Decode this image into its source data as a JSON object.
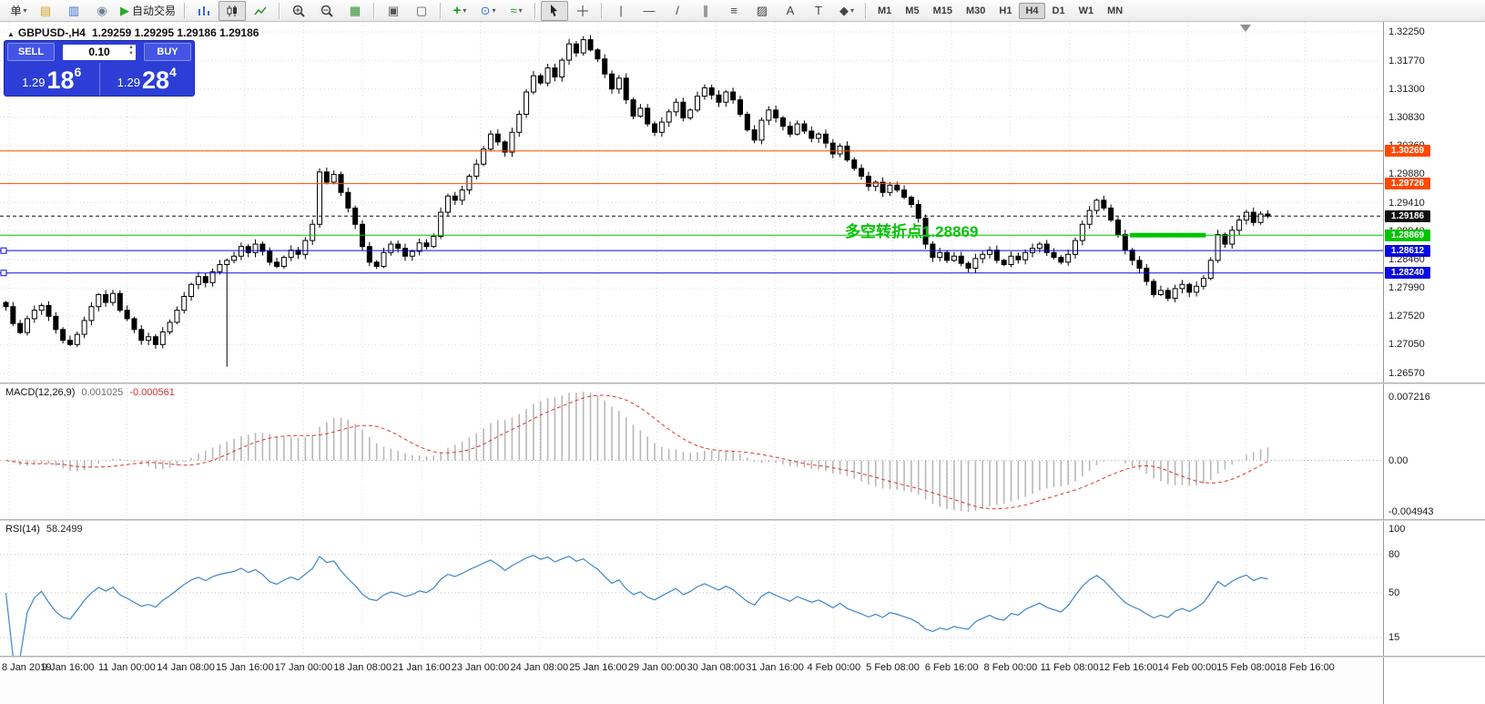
{
  "glyphs": {
    "caret": "▾",
    "spin_up": "▲",
    "spin_down": "▼",
    "panel_toggle": "▲"
  },
  "toolbar": {
    "timeframes": [
      "M1",
      "M5",
      "M15",
      "M30",
      "H1",
      "H4",
      "D1",
      "W1",
      "MN"
    ],
    "active_timeframe": "H4",
    "items": [
      {
        "kind": "label",
        "name": "order-menu",
        "label": "单",
        "caret": true
      },
      {
        "kind": "glyph",
        "name": "new-order-icon",
        "glyph": "▤",
        "color": "#d79f1e"
      },
      {
        "kind": "glyph",
        "name": "market-watch-icon",
        "glyph": "▥",
        "color": "#3a6fd8"
      },
      {
        "kind": "glyph",
        "name": "navigator-icon",
        "glyph": "◉",
        "color": "#6d7f94"
      },
      {
        "kind": "label",
        "name": "autotrading-button",
        "glyph": "▶",
        "glyph_color": "#27aa27",
        "label": "自动交易"
      },
      {
        "kind": "sep"
      },
      {
        "kind": "svg",
        "name": "bar-chart-button",
        "icon": "bars"
      },
      {
        "kind": "svg",
        "name": "candlestick-chart-button",
        "icon": "candles",
        "pressed": true
      },
      {
        "kind": "svg",
        "name": "line-chart-button",
        "icon": "linechart"
      },
      {
        "kind": "sep"
      },
      {
        "kind": "svg",
        "name": "zoom-in-button",
        "icon": "zoomin"
      },
      {
        "kind": "svg",
        "name": "zoom-out-button",
        "icon": "zoomout"
      },
      {
        "kind": "glyph",
        "name": "tile-windows-icon",
        "glyph": "▦",
        "color": "#2f8f2f"
      },
      {
        "kind": "sep"
      },
      {
        "kind": "glyph",
        "name": "arrange-horizontal-icon",
        "glyph": "▣",
        "color": "#555555"
      },
      {
        "kind": "glyph",
        "name": "arrange-vertical-icon",
        "glyph": "▢",
        "color": "#555555"
      },
      {
        "kind": "sep"
      },
      {
        "kind": "glyph",
        "name": "new-order-button",
        "glyph": "+",
        "color": "#1d9f1d",
        "bold": true,
        "caret": true
      },
      {
        "kind": "glyph",
        "name": "chart-period-button",
        "glyph": "⊙",
        "color": "#2f6fd0",
        "caret": true
      },
      {
        "kind": "glyph",
        "name": "indicators-button",
        "glyph": "≈",
        "color": "#1d9f1d",
        "caret": true
      },
      {
        "kind": "sep"
      },
      {
        "kind": "svg",
        "name": "cursor-tool-button",
        "icon": "cursor",
        "pressed": true
      },
      {
        "kind": "svg",
        "name": "crosshair-tool-button",
        "icon": "crosshair"
      },
      {
        "kind": "sep"
      },
      {
        "kind": "glyph",
        "name": "vertical-line-tool",
        "glyph": "|",
        "color": "#444444"
      },
      {
        "kind": "glyph",
        "name": "horizontal-line-tool",
        "glyph": "—",
        "color": "#444444"
      },
      {
        "kind": "glyph",
        "name": "trendline-tool",
        "glyph": "/",
        "color": "#444444"
      },
      {
        "kind": "glyph",
        "name": "channel-tool",
        "glyph": "∥",
        "color": "#444444"
      },
      {
        "kind": "glyph",
        "name": "fibonacci-tool",
        "glyph": "≡",
        "color": "#444444"
      },
      {
        "kind": "glyph",
        "name": "shapes-grid-tool",
        "glyph": "▨",
        "color": "#444444"
      },
      {
        "kind": "glyph",
        "name": "text-tool",
        "glyph": "A",
        "color": "#444444"
      },
      {
        "kind": "glyph",
        "name": "label-tool",
        "glyph": "T",
        "color": "#444444"
      },
      {
        "kind": "glyph",
        "name": "arrows-tool",
        "glyph": "◆",
        "color": "#444444",
        "caret": true
      },
      {
        "kind": "sep"
      },
      {
        "kind": "timeframes"
      }
    ]
  },
  "trade_panel": {
    "sell_label": "SELL",
    "buy_label": "BUY",
    "lot_size": "0.10",
    "sell": {
      "prefix": "1.29",
      "big": "18",
      "frac": "6"
    },
    "buy": {
      "prefix": "1.29",
      "big": "28",
      "frac": "4"
    }
  },
  "chart": {
    "title": "GBPUSD-,H4",
    "ohlc_values": "1.29259 1.29295 1.29186 1.29186",
    "y_max": 1.3225,
    "y_min": 1.2657,
    "price_axis_labels": [
      "1.32250",
      "1.31770",
      "1.31300",
      "1.30830",
      "1.30360",
      "1.29880",
      "1.29410",
      "1.28940",
      "1.28460",
      "1.27990",
      "1.27520",
      "1.27050",
      "1.26570"
    ],
    "annotation": {
      "text": "多空转折点1.28869",
      "color": "#00c400"
    },
    "levels": [
      {
        "value": 1.30269,
        "label": "1.30269",
        "color": "#ff4800"
      },
      {
        "value": 1.29726,
        "label": "1.29726",
        "color": "#ff4800"
      },
      {
        "value": 1.29186,
        "label": "1.29186",
        "color": "#101010",
        "dash": true
      },
      {
        "value": 1.28869,
        "label": "1.28869",
        "color": "#00c400",
        "segment": {
          "from_index": 158,
          "to_index": 168
        }
      },
      {
        "value": 1.28612,
        "label": "1.28612",
        "color": "#0a0adf",
        "handles": true
      },
      {
        "value": 1.2824,
        "label": "1.28240",
        "color": "#0a0adf",
        "handles": true
      }
    ]
  },
  "chart_data": {
    "type": "candlestick",
    "symbol": "GBPUSD-",
    "period": "H4",
    "open_first": 1.2775,
    "closes": [
      1.2768,
      1.274,
      1.2725,
      1.2748,
      1.2762,
      1.277,
      1.2752,
      1.273,
      1.2712,
      1.2705,
      1.2722,
      1.2745,
      1.2768,
      1.2788,
      1.2775,
      1.279,
      1.2762,
      1.2748,
      1.273,
      1.2712,
      1.2718,
      1.2705,
      1.2726,
      1.2742,
      1.2762,
      1.2785,
      1.2805,
      1.2818,
      1.2808,
      1.2826,
      1.2838,
      1.2845,
      1.2852,
      1.2868,
      1.2858,
      1.2872,
      1.286,
      1.2842,
      1.2835,
      1.285,
      1.2862,
      1.2855,
      1.2878,
      1.2905,
      1.2992,
      1.2975,
      1.2988,
      1.2958,
      1.2932,
      1.2905,
      1.2868,
      1.2842,
      1.2835,
      1.2858,
      1.2872,
      1.2865,
      1.2852,
      1.286,
      1.2874,
      1.2868,
      1.2885,
      1.2925,
      1.2952,
      1.2945,
      1.2962,
      1.2985,
      1.3005,
      1.303,
      1.3055,
      1.3042,
      1.3025,
      1.3058,
      1.3088,
      1.3125,
      1.3152,
      1.314,
      1.3165,
      1.315,
      1.3178,
      1.3205,
      1.319,
      1.3212,
      1.3195,
      1.318,
      1.3155,
      1.313,
      1.3148,
      1.3112,
      1.3085,
      1.3098,
      1.3072,
      1.3058,
      1.3075,
      1.3092,
      1.3108,
      1.3082,
      1.3095,
      1.3118,
      1.3132,
      1.312,
      1.3108,
      1.3125,
      1.3112,
      1.3088,
      1.3062,
      1.3045,
      1.3078,
      1.3095,
      1.3082,
      1.3068,
      1.3055,
      1.3072,
      1.306,
      1.3048,
      1.3055,
      1.304,
      1.3022,
      1.3035,
      1.3012,
      1.2998,
      1.2985,
      1.2968,
      1.2975,
      1.2958,
      1.297,
      1.2962,
      1.295,
      1.2938,
      1.2915,
      1.2872,
      1.285,
      1.2858,
      1.2845,
      1.2852,
      1.284,
      1.2832,
      1.2848,
      1.2855,
      1.2862,
      1.2845,
      1.2838,
      1.2852,
      1.2846,
      1.2858,
      1.2865,
      1.2872,
      1.2858,
      1.285,
      1.2842,
      1.2855,
      1.2878,
      1.2905,
      1.2928,
      1.2945,
      1.2932,
      1.2912,
      1.2888,
      1.2862,
      1.2845,
      1.2832,
      1.281,
      1.2788,
      1.2795,
      1.2782,
      1.2798,
      1.2805,
      1.2792,
      1.2802,
      1.2815,
      1.2845,
      1.2888,
      1.2872,
      1.2895,
      1.2912,
      1.2925,
      1.2908,
      1.2922,
      1.29186
    ],
    "wick_overrides": {
      "31": {
        "low": 1.2668
      },
      "44": {
        "high": 1.2998
      },
      "81": {
        "high": 1.3218
      }
    },
    "time_labels": [
      "8 Jan 2019",
      "9 Jan 16:00",
      "11 Jan 00:00",
      "14 Jan 08:00",
      "15 Jan 16:00",
      "17 Jan 00:00",
      "18 Jan 08:00",
      "21 Jan 16:00",
      "23 Jan 00:00",
      "24 Jan 08:00",
      "25 Jan 16:00",
      "29 Jan 00:00",
      "30 Jan 08:00",
      "31 Jan 16:00",
      "4 Feb 00:00",
      "5 Feb 08:00",
      "6 Feb 16:00",
      "8 Feb 00:00",
      "11 Feb 08:00",
      "12 Feb 16:00",
      "14 Feb 00:00",
      "15 Feb 08:00",
      "18 Feb 16:00"
    ],
    "indicators": [
      {
        "type": "MACD",
        "label": "MACD(12,26,9)",
        "main_value": "0.001025",
        "signal_value": "-0.000561",
        "axis_labels": [
          "0.007216",
          "0.00",
          "-0.004943"
        ],
        "histogram_color": "#b8b8b8",
        "signal_color": "#e03535"
      },
      {
        "type": "RSI",
        "label": "RSI(14)",
        "value": "58.2499",
        "axis_labels": [
          "100",
          "80",
          "50",
          "15"
        ],
        "levels": [
          80,
          50,
          15
        ],
        "line_color": "#3d87c8"
      }
    ]
  }
}
